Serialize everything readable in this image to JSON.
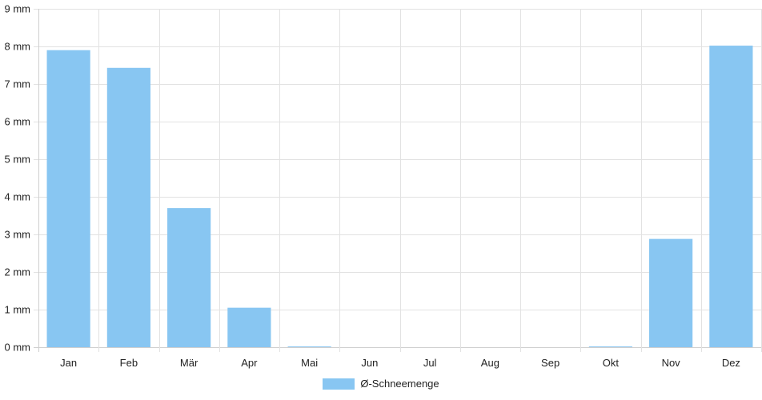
{
  "chart_data": {
    "type": "bar",
    "categories": [
      "Jan",
      "Feb",
      "Mär",
      "Apr",
      "Mai",
      "Jun",
      "Jul",
      "Aug",
      "Sep",
      "Okt",
      "Nov",
      "Dez"
    ],
    "series": [
      {
        "name": "Ø-Schneemenge",
        "values": [
          7.9,
          7.43,
          3.7,
          1.05,
          0.02,
          0,
          0,
          0,
          0,
          0.02,
          2.88,
          8.02
        ]
      }
    ],
    "ylim": [
      0,
      9
    ],
    "yticks": [
      0,
      1,
      2,
      3,
      4,
      5,
      6,
      7,
      8,
      9
    ],
    "y_unit": "mm",
    "title": "",
    "xlabel": "",
    "ylabel": "",
    "grid": true,
    "legend_position": "bottom-center",
    "colors": {
      "bar": "#88c6f2",
      "grid": "#e2e2e2",
      "axis": "#cfcfcf"
    }
  }
}
